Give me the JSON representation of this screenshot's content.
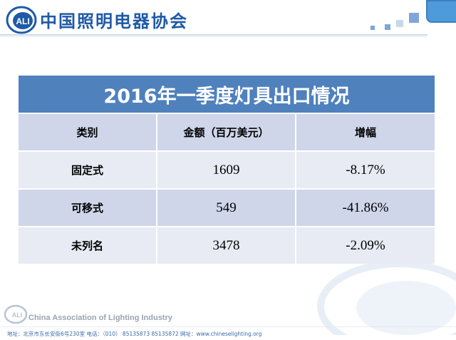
{
  "header": {
    "logo_mark": "CALI",
    "org_name_cn": "中国照明电器协会"
  },
  "table": {
    "title": "2016年一季度灯具出口情况",
    "columns": [
      "类别",
      "金额（百万美元）",
      "增幅"
    ],
    "rows": [
      [
        "固定式",
        "1609",
        "-8.17%"
      ],
      [
        "可移式",
        "549",
        "-41.86%"
      ],
      [
        "未列名",
        "3478",
        "-2.09%"
      ]
    ]
  },
  "footer": {
    "org_name_en": "China Association of Lighting Industry",
    "address": "地址：北京市东长安街6号230室   电话：（010） 85135873 85135872     网址：www.chineselighting.org"
  },
  "colors": {
    "title_bar": "#4f81bd",
    "row_dark": "#cfd6ea",
    "row_light": "#e8ebf4",
    "brand_blue": "#1f5aa6"
  }
}
